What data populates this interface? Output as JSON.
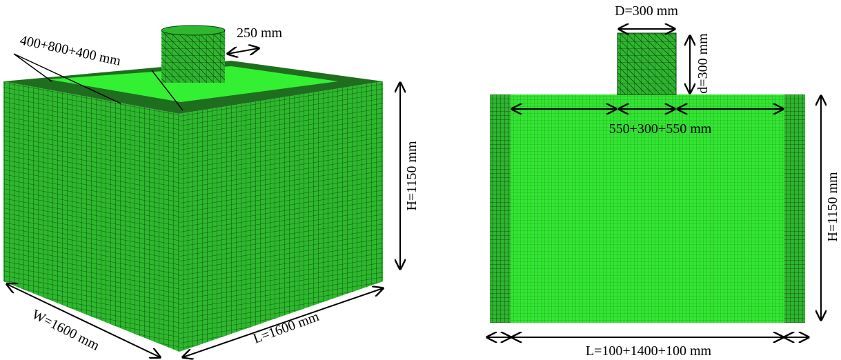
{
  "left_view": {
    "top_width": "400+800+400 mm",
    "wall": "250 mm",
    "height": "H=1150 mm",
    "width": "W=1600 mm",
    "length": "L=1600 mm"
  },
  "right_view": {
    "diameter": "D=300 mm",
    "depth": "d=300 mm",
    "span": "550+300+550 mm",
    "height": "H=1150 mm",
    "length": "L=100+1400+100 mm"
  }
}
